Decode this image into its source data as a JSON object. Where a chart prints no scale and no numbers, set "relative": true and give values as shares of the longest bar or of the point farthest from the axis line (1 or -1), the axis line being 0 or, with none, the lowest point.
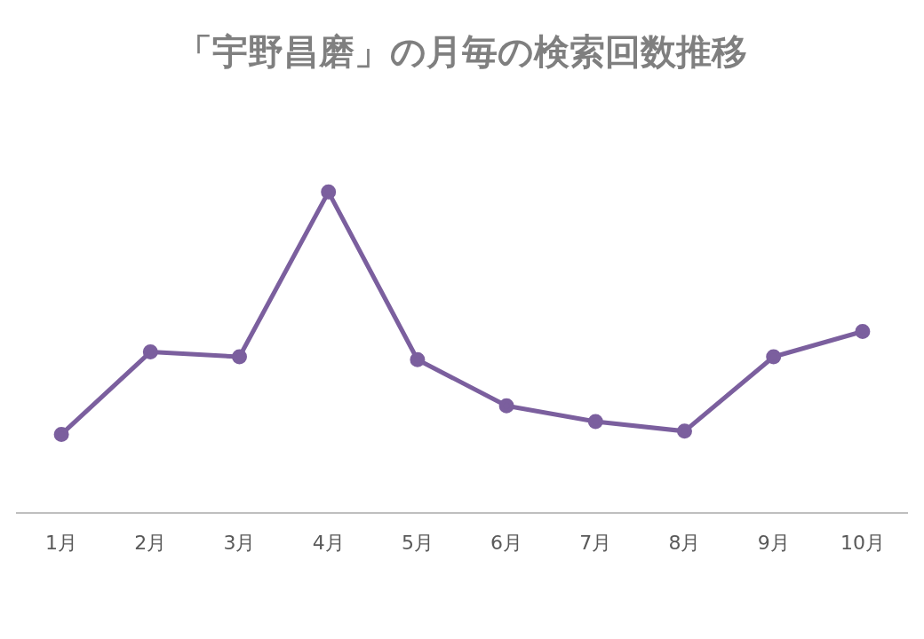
{
  "chart_data": {
    "type": "line",
    "title": "「宇野昌磨」の月毎の検索回数推移",
    "relative": true,
    "marker": "circle",
    "legend": false,
    "grid": false,
    "categories": [
      "1月",
      "2月",
      "3月",
      "4月",
      "5月",
      "6月",
      "7月",
      "8月",
      "9月",
      "10月"
    ],
    "series": [
      {
        "color": "#7b5f9e",
        "values": [
          0.244,
          0.501,
          0.486,
          1,
          0.477,
          0.333,
          0.284,
          0.254,
          0.486,
          0.565
        ]
      }
    ]
  }
}
